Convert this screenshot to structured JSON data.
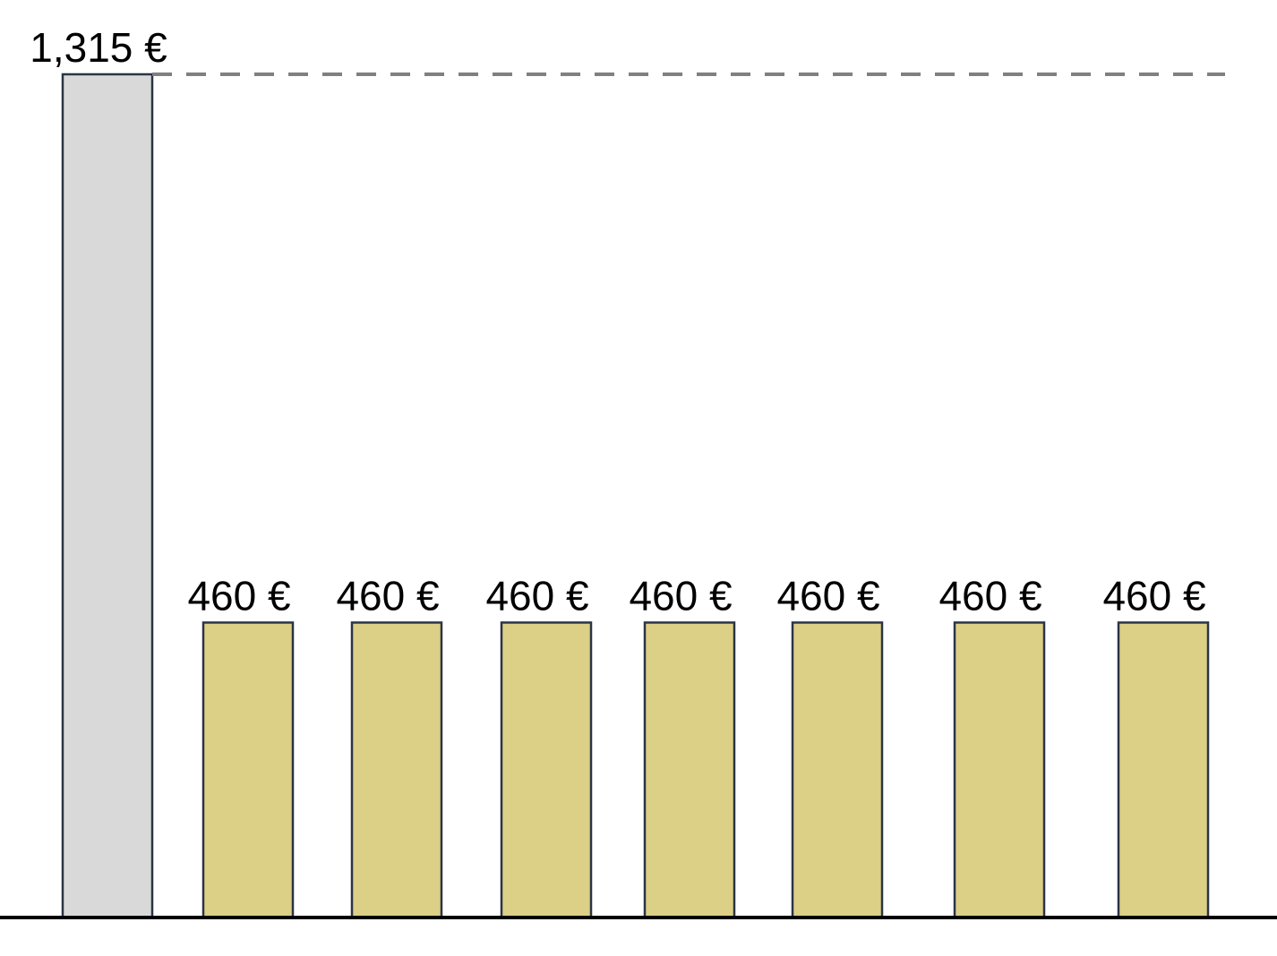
{
  "chart_data": {
    "type": "bar",
    "categories": [
      "",
      "",
      "",
      "",
      "",
      "",
      "",
      ""
    ],
    "values": [
      1315,
      460,
      460,
      460,
      460,
      460,
      460,
      460
    ],
    "labels": [
      "1,315 €",
      "460 €",
      "460 €",
      "460 €",
      "460 €",
      "460 €",
      "460 €",
      "460 €"
    ],
    "title": "",
    "xlabel": "",
    "ylabel": "",
    "ylim": [
      0,
      1315
    ],
    "grid": false,
    "reference_line": {
      "value": 1315,
      "style": "dashed"
    },
    "colors": {
      "first_bar": "#d9d9d9",
      "other_bars": "#dccf86",
      "bar_border": "#2a3446",
      "reference_line": "#808080",
      "axis": "#000000"
    }
  }
}
